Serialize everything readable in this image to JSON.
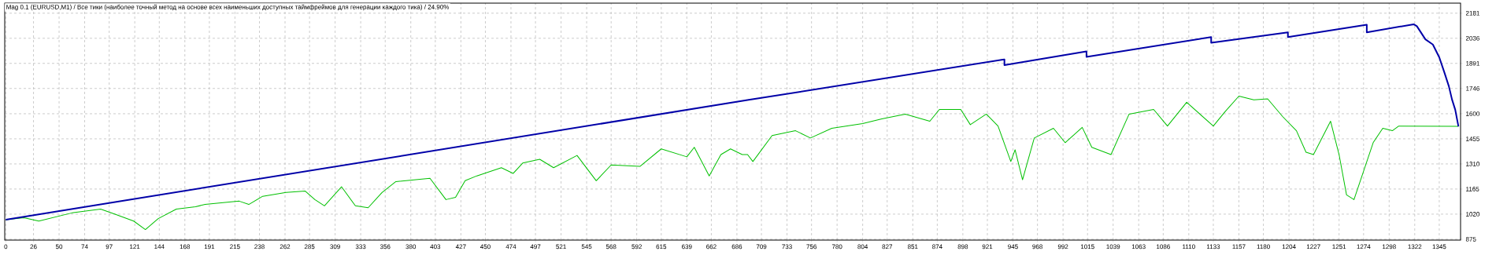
{
  "chart_data": {
    "type": "line",
    "title": "Mag 0.1 (EURUSD,M1) / Все тики (наиболее точный метод на основе всех наименьших доступных таймфреймов для генерации каждого тика) / 24.90%",
    "xlim": [
      -1,
      1365
    ],
    "ylim": [
      870,
      2239
    ],
    "xticks": [
      0,
      26,
      50,
      74,
      97,
      121,
      144,
      168,
      191,
      215,
      238,
      262,
      285,
      309,
      333,
      356,
      380,
      403,
      427,
      450,
      474,
      497,
      521,
      545,
      568,
      592,
      615,
      639,
      662,
      686,
      709,
      733,
      756,
      780,
      804,
      827,
      851,
      874,
      898,
      921,
      945,
      968,
      992,
      1015,
      1039,
      1063,
      1086,
      1110,
      1133,
      1157,
      1180,
      1204,
      1227,
      1251,
      1274,
      1298,
      1322,
      1345
    ],
    "yticks": [
      875,
      1020,
      1165,
      1310,
      1455,
      1600,
      1746,
      1891,
      2036,
      2181
    ],
    "grid": true,
    "series": [
      {
        "color": "#00c000",
        "x": [
          0,
          17,
          31,
          62,
          89,
          102,
          120,
          131,
          143,
          160,
          178,
          187,
          219,
          228,
          241,
          263,
          281,
          290,
          299,
          315,
          328,
          340,
          353,
          366,
          398,
          413,
          422,
          431,
          442,
          465,
          476,
          485,
          501,
          514,
          536,
          554,
          568,
          595,
          615,
          639,
          646,
          660,
          671,
          680,
          691,
          696,
          701,
          719,
          741,
          755,
          775,
          804,
          822,
          844,
          867,
          876,
          896,
          905,
          920,
          931,
          943,
          947,
          954,
          965,
          983,
          994,
          1010,
          1019,
          1037,
          1054,
          1077,
          1090,
          1108,
          1133,
          1144,
          1157,
          1171,
          1184,
          1198,
          1211,
          1220,
          1227,
          1243,
          1251,
          1258,
          1265,
          1274,
          1283,
          1292,
          1301,
          1307,
          1363
        ],
        "values": [
          988,
          999,
          980,
          1027,
          1049,
          1021,
          980,
          931,
          994,
          1049,
          1063,
          1076,
          1095,
          1076,
          1123,
          1145,
          1153,
          1104,
          1068,
          1178,
          1068,
          1057,
          1145,
          1208,
          1227,
          1104,
          1117,
          1213,
          1241,
          1288,
          1255,
          1315,
          1337,
          1288,
          1359,
          1213,
          1304,
          1296,
          1397,
          1351,
          1406,
          1241,
          1364,
          1397,
          1364,
          1364,
          1324,
          1474,
          1502,
          1460,
          1516,
          1543,
          1570,
          1598,
          1557,
          1625,
          1625,
          1537,
          1598,
          1529,
          1324,
          1392,
          1219,
          1460,
          1516,
          1433,
          1521,
          1406,
          1364,
          1598,
          1625,
          1529,
          1666,
          1529,
          1612,
          1702,
          1680,
          1686,
          1584,
          1502,
          1378,
          1364,
          1557,
          1364,
          1131,
          1104,
          1268,
          1433,
          1516,
          1502,
          1529,
          1527
        ]
      },
      {
        "color": "#0000a8",
        "x": [
          0,
          697,
          937,
          937,
          1014,
          1014,
          1131,
          1131,
          1203,
          1203,
          1277,
          1277,
          1321,
          1324,
          1332,
          1339,
          1345,
          1350,
          1354,
          1357,
          1360,
          1363
        ],
        "values": [
          988,
          1680,
          1914,
          1881,
          1960,
          1928,
          2043,
          2010,
          2070,
          2043,
          2114,
          2070,
          2117,
          2106,
          2030,
          2000,
          1926,
          1835,
          1759,
          1682,
          1623,
          1527
        ]
      }
    ]
  }
}
